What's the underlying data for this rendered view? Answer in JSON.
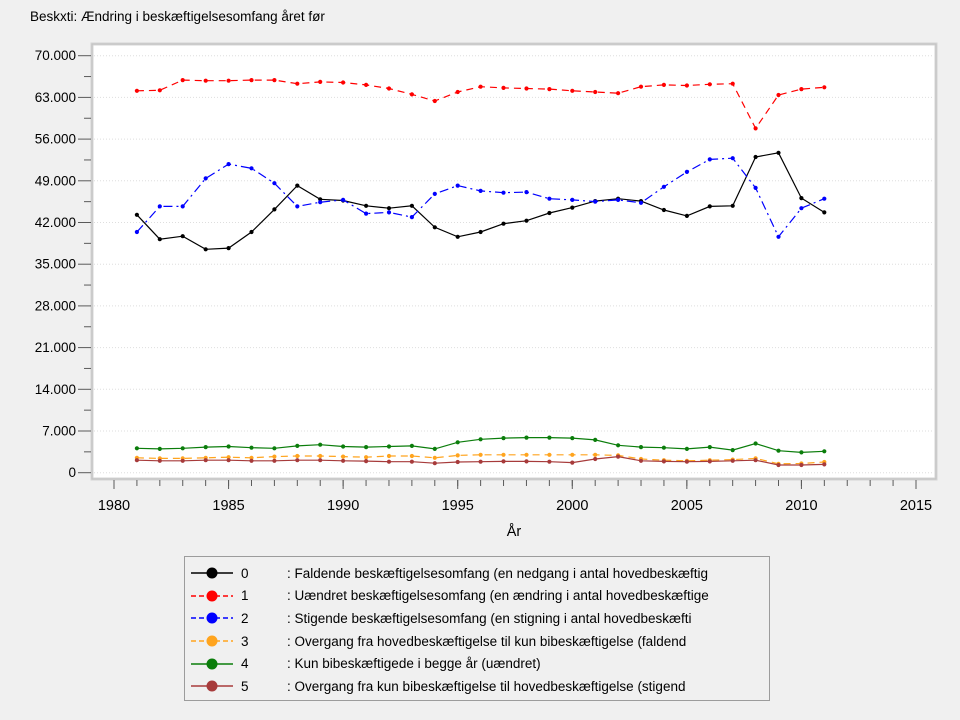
{
  "title": "Beskxti: Ændring i beskæftigelsesomfang året før",
  "chart_data": {
    "type": "line",
    "title": "Beskxti: Ændring i beskæftigelsesomfang året før",
    "xlabel": "År",
    "ylabel": "",
    "xlim": [
      1979,
      2016
    ],
    "ylim": [
      0,
      70000
    ],
    "grid": "horizontal-dotted",
    "legend_position": "bottom",
    "x_years": [
      1981,
      1982,
      1983,
      1984,
      1985,
      1986,
      1987,
      1988,
      1989,
      1990,
      1991,
      1992,
      1993,
      1994,
      1995,
      1996,
      1997,
      1998,
      1999,
      2000,
      2001,
      2002,
      2003,
      2004,
      2005,
      2006,
      2007,
      2008,
      2009,
      2010,
      2011
    ],
    "x_ticks": {
      "values": [
        1980,
        1985,
        1990,
        1995,
        2000,
        2005,
        2010,
        2015
      ],
      "labels": [
        "1980",
        "1985",
        "1990",
        "1995",
        "2000",
        "2005",
        "2010",
        "2015"
      ]
    },
    "y_ticks": {
      "values": [
        0,
        7000,
        14000,
        21000,
        28000,
        35000,
        42000,
        49000,
        56000,
        63000,
        70000
      ],
      "labels": [
        "0",
        "7.000",
        "14.000",
        "21.000",
        "28.000",
        "35.000",
        "42.000",
        "49.000",
        "56.000",
        "63.000",
        "70.000"
      ]
    },
    "series": [
      {
        "key": "0",
        "label": ": Faldende beskæftigelsesomfang (en nedgang i antal hovedbeskæftig",
        "color": "#000000",
        "line_style": "solid",
        "values": [
          43300,
          39200,
          39700,
          37500,
          37700,
          40400,
          44200,
          48200,
          45900,
          45700,
          44800,
          44400,
          44800,
          41200,
          39600,
          40400,
          41800,
          42300,
          43600,
          44500,
          45600,
          46000,
          45600,
          44100,
          43100,
          44700,
          44800,
          53000,
          53700,
          46100,
          43700
        ]
      },
      {
        "key": "1",
        "label": ": Uændret beskæftigelsesomfang (en ændring i antal hovedbeskæftige",
        "color": "#ff0000",
        "line_style": "dashed",
        "values": [
          64100,
          64200,
          65900,
          65800,
          65800,
          65900,
          65900,
          65300,
          65600,
          65500,
          65100,
          64500,
          63500,
          62400,
          63900,
          64800,
          64600,
          64500,
          64400,
          64100,
          63900,
          63700,
          64800,
          65100,
          65000,
          65200,
          65300,
          57800,
          63400,
          64400,
          64700
        ]
      },
      {
        "key": "2",
        "label": ": Stigende beskæftigelsesomfang (en stigning i antal hovedbeskæfti",
        "color": "#0000ff",
        "line_style": "dash-dot",
        "values": [
          40400,
          44700,
          44700,
          49400,
          51800,
          51100,
          48600,
          44700,
          45400,
          45800,
          43500,
          43700,
          42900,
          46800,
          48200,
          47300,
          47000,
          47100,
          46000,
          45800,
          45500,
          45800,
          45300,
          48000,
          50500,
          52600,
          52800,
          47800,
          39600,
          44400,
          46000
        ]
      },
      {
        "key": "3",
        "label": ": Overgang fra hovedbeskæftigelse til kun bibeskæftigelse (faldend",
        "color": "#ffa41e",
        "line_style": "dashed",
        "values": [
          2500,
          2400,
          2400,
          2500,
          2600,
          2500,
          2700,
          2800,
          2800,
          2700,
          2600,
          2800,
          2800,
          2500,
          2900,
          3000,
          3000,
          3000,
          3000,
          3000,
          3000,
          2900,
          2300,
          2100,
          2000,
          2100,
          2200,
          2400,
          1500,
          1550,
          1800
        ]
      },
      {
        "key": "4",
        "label": ": Kun bibeskæftigede i begge år (uændret)",
        "color": "#0b7d0b",
        "line_style": "solid",
        "values": [
          4100,
          4000,
          4100,
          4300,
          4400,
          4200,
          4100,
          4500,
          4700,
          4400,
          4300,
          4400,
          4500,
          4000,
          5100,
          5600,
          5800,
          5900,
          5900,
          5800,
          5500,
          4600,
          4300,
          4200,
          4000,
          4300,
          3800,
          4900,
          3700,
          3400,
          3600
        ]
      },
      {
        "key": "5",
        "label": ": Overgang fra kun bibeskæftigelse til hovedbeskæftigelse (stigend",
        "color": "#a73b3b",
        "line_style": "solid",
        "values": [
          2100,
          2000,
          2000,
          2100,
          2100,
          2000,
          2000,
          2100,
          2100,
          2000,
          1950,
          1850,
          1850,
          1600,
          1800,
          1850,
          1900,
          1900,
          1850,
          1700,
          2300,
          2700,
          2000,
          1900,
          1850,
          1900,
          2000,
          2100,
          1300,
          1300,
          1400
        ]
      }
    ]
  }
}
